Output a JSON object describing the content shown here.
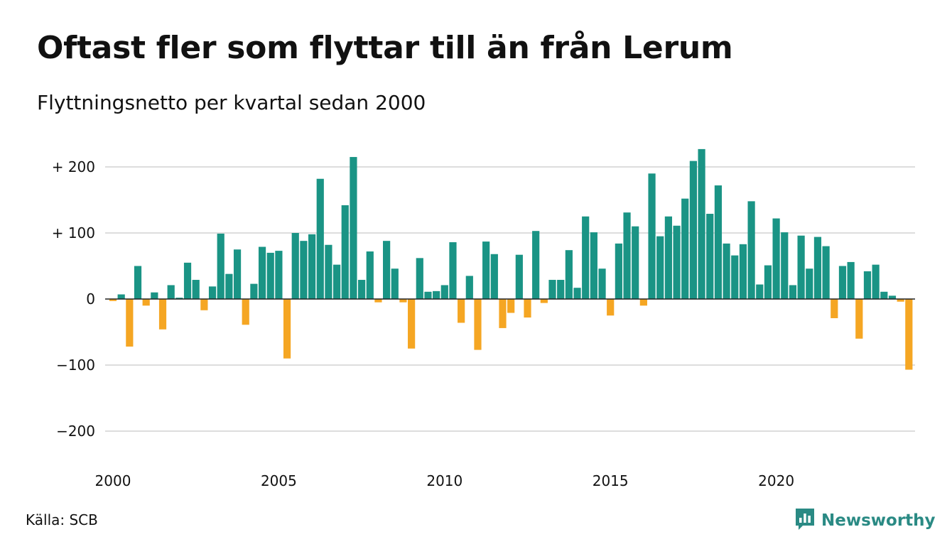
{
  "header": {
    "title": "Oftast fler som flyttar till än från Lerum",
    "subtitle": "Flyttningsnetto per kvartal sedan 2000"
  },
  "footer": {
    "source": "Källa: SCB",
    "brand": "Newsworthy"
  },
  "colors": {
    "positive": "#1a9485",
    "negative": "#f5a623",
    "grid": "#dddddd",
    "zero_line": "#222222",
    "brand": "#2a8a84"
  },
  "icons": {
    "logo": "newsworthy-chart-bubble-icon"
  },
  "chart_data": {
    "type": "bar",
    "title": "Oftast fler som flyttar till än från Lerum",
    "subtitle": "Flyttningsnetto per kvartal sedan 2000",
    "xlabel": "",
    "ylabel": "",
    "x_start": "2000 Q1",
    "frequency": "quarterly",
    "ylim": [
      -230,
      240
    ],
    "y_ticks": [
      200,
      100,
      0,
      -100,
      -200
    ],
    "y_tick_labels": [
      "+ 200",
      "+ 100",
      "0",
      "−100",
      "−200"
    ],
    "x_ticks": [
      2000,
      2005,
      2010,
      2015,
      2020
    ],
    "x_tick_labels": [
      "2000",
      "2005",
      "2010",
      "2015",
      "2020"
    ],
    "grid": true,
    "legend": "none",
    "values": [
      -3,
      7,
      -72,
      50,
      -10,
      10,
      -46,
      21,
      2,
      55,
      29,
      -17,
      19,
      99,
      38,
      75,
      -39,
      23,
      79,
      70,
      73,
      -90,
      100,
      88,
      98,
      182,
      82,
      52,
      142,
      215,
      29,
      72,
      -5,
      88,
      46,
      -5,
      -75,
      62,
      11,
      12,
      21,
      86,
      -36,
      35,
      -77,
      87,
      68,
      -44,
      -21,
      67,
      -28,
      103,
      -6,
      29,
      29,
      74,
      17,
      125,
      101,
      46,
      -25,
      84,
      131,
      110,
      -10,
      190,
      95,
      125,
      111,
      152,
      209,
      227,
      129,
      172,
      84,
      66,
      83,
      148,
      22,
      51,
      122,
      101,
      21,
      96,
      46,
      94,
      80,
      -29,
      50,
      56,
      -60,
      42,
      52,
      11,
      5,
      -4,
      -107
    ]
  }
}
